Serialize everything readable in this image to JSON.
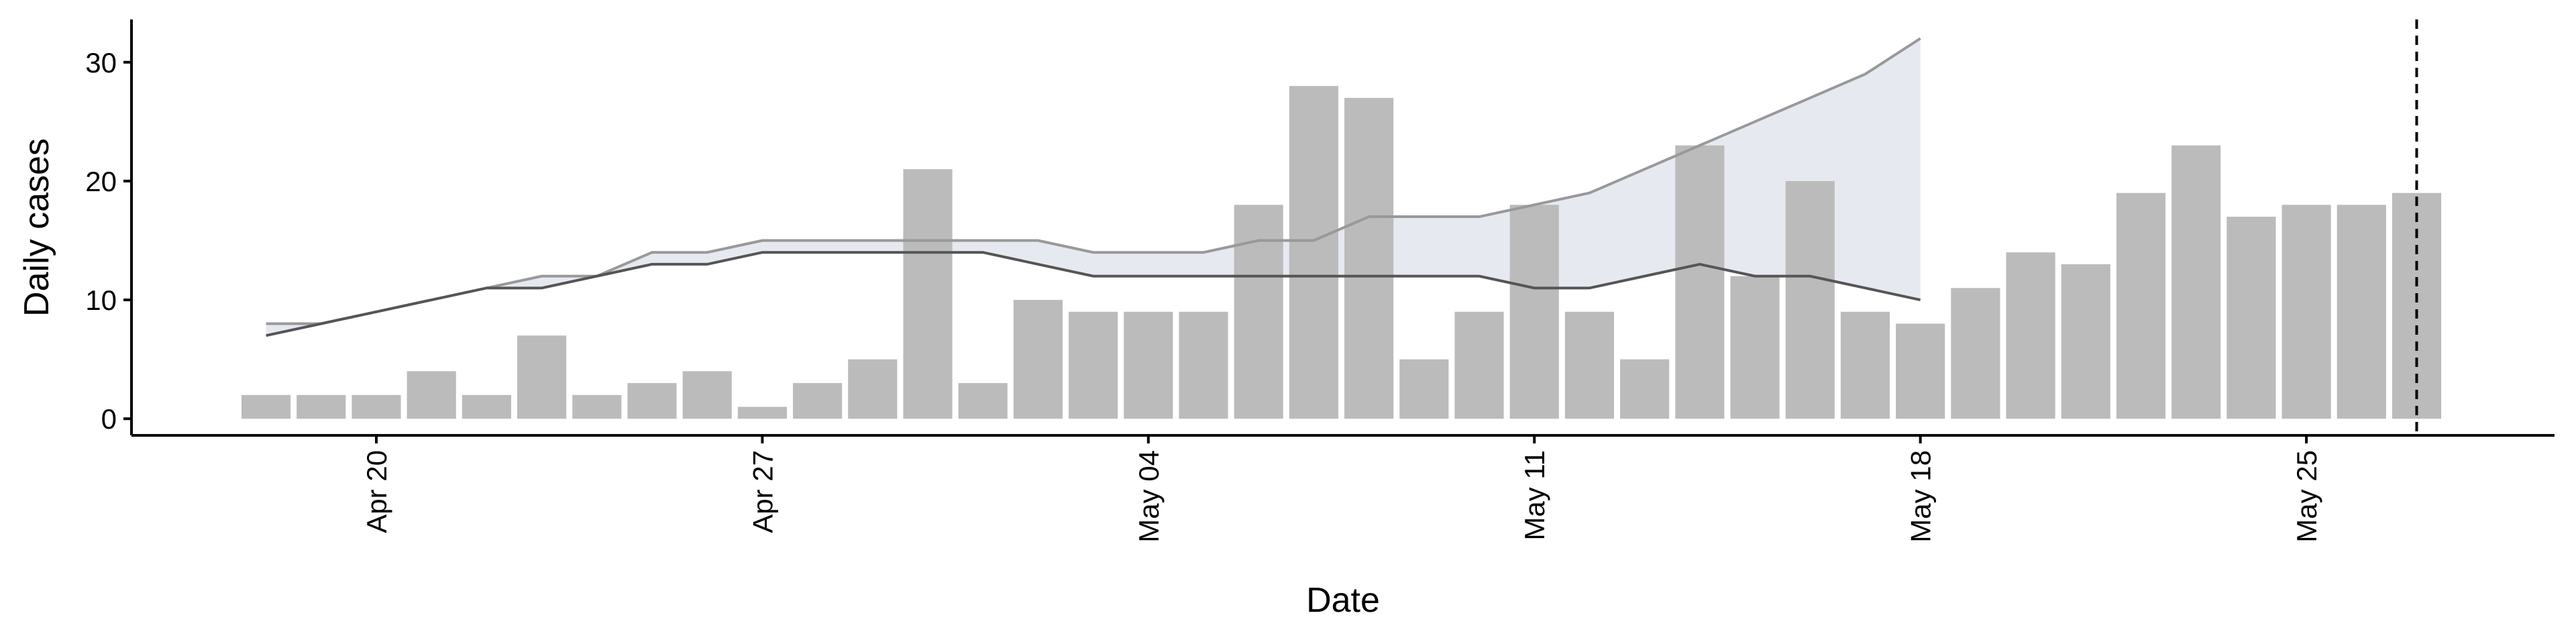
{
  "chart_data": {
    "type": "bar",
    "x_label": "Date",
    "y_label": "Daily cases",
    "categories": [
      null,
      null,
      "Apr 20",
      null,
      null,
      null,
      null,
      null,
      null,
      "Apr 27",
      null,
      null,
      null,
      null,
      null,
      null,
      "May 04",
      null,
      null,
      null,
      null,
      null,
      null,
      "May 11",
      null,
      null,
      null,
      null,
      null,
      null,
      "May 18",
      null,
      null,
      null,
      null,
      null,
      null,
      "May 25",
      null,
      null
    ],
    "series": [
      {
        "type": "bar",
        "color": "#bbbbbb",
        "values": [
          2,
          2,
          2,
          4,
          2,
          7,
          2,
          3,
          4,
          1,
          3,
          5,
          21,
          3,
          10,
          9,
          9,
          9,
          18,
          28,
          27,
          5,
          9,
          18,
          9,
          5,
          23,
          12,
          20,
          9,
          8,
          11,
          14,
          13,
          19,
          23,
          17,
          18,
          18,
          19
        ]
      },
      {
        "type": "line",
        "color": "#999999",
        "values": [
          8,
          8,
          9,
          10,
          11,
          12,
          12,
          14,
          14,
          15,
          15,
          15,
          15,
          15,
          15,
          14,
          14,
          14,
          15,
          15,
          17,
          17,
          17,
          18,
          19,
          21,
          23,
          25,
          27,
          29,
          32,
          null,
          null,
          null,
          null,
          null,
          null,
          null,
          null,
          null
        ]
      },
      {
        "type": "line",
        "color": "#555555",
        "values": [
          7,
          8,
          9,
          10,
          11,
          11,
          12,
          13,
          13,
          14,
          14,
          14,
          14,
          14,
          13,
          12,
          12,
          12,
          12,
          12,
          12,
          12,
          12,
          11,
          11,
          12,
          13,
          12,
          12,
          11,
          10,
          null,
          null,
          null,
          null,
          null,
          null,
          null,
          null,
          null
        ]
      }
    ],
    "band_color": "#e4e7f0",
    "vline_category_index": 39,
    "xlim": [
      -2.44,
      41.5
    ],
    "ylim": [
      -1.4,
      33.6
    ],
    "yticks": [
      0,
      10,
      20,
      30
    ]
  }
}
